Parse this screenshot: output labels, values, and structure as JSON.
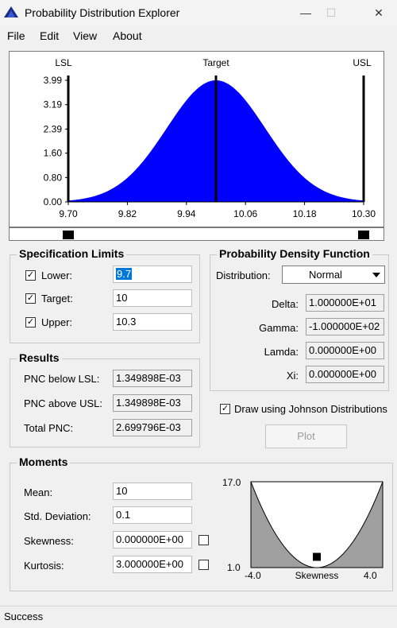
{
  "window": {
    "title": "Probability Distribution Explorer",
    "min": "—",
    "max": "☐",
    "close": "✕"
  },
  "menu": {
    "file": "File",
    "edit": "Edit",
    "view": "View",
    "about": "About"
  },
  "chart_data": {
    "type": "area",
    "description_free": true,
    "x_ticks": [
      "9.70",
      "9.82",
      "9.94",
      "10.06",
      "10.18",
      "10.30"
    ],
    "y_ticks": [
      "0.00",
      "0.80",
      "1.60",
      "2.39",
      "3.19",
      "3.99"
    ],
    "xlim": [
      9.7,
      10.3
    ],
    "ylim": [
      0,
      3.99
    ],
    "mean": 10,
    "std": 0.1,
    "markers": {
      "lsl": 9.7,
      "target": 10,
      "usl": 10.3
    },
    "marker_labels": {
      "lsl": "LSL",
      "target": "Target",
      "usl": "USL"
    },
    "fill_color": "#0000ff"
  },
  "slider": {
    "lsl_handle": 9.7,
    "usl_handle": 10.3
  },
  "spec_limits": {
    "title": "Specification Limits",
    "lower_label": "Lower:",
    "lower_value": "9.7",
    "lower_checked": "✓",
    "target_label": "Target:",
    "target_value": "10",
    "target_checked": "✓",
    "upper_label": "Upper:",
    "upper_value": "10.3",
    "upper_checked": "✓"
  },
  "results": {
    "title": "Results",
    "below_label": "PNC below LSL:",
    "below_value": "1.349898E-03",
    "above_label": "PNC above USL:",
    "above_value": "1.349898E-03",
    "total_label": "Total PNC:",
    "total_value": "2.699796E-03"
  },
  "pdf": {
    "title": "Probability Density Function",
    "distribution_label": "Distribution:",
    "distribution_value": "Normal",
    "delta_label": "Delta:",
    "delta_value": "1.000000E+01",
    "gamma_label": "Gamma:",
    "gamma_value": "-1.000000E+02",
    "lamda_label": "Lamda:",
    "lamda_value": "0.000000E+00",
    "xi_label": "Xi:",
    "xi_value": "0.000000E+00"
  },
  "johnson": {
    "label": "Draw using Johnson Distributions",
    "checked": "✓"
  },
  "plot_button": "Plot",
  "moments": {
    "title": "Moments",
    "mean_label": "Mean:",
    "mean_value": "10",
    "std_label": "Std. Deviation:",
    "std_value": "0.1",
    "skew_label": "Skewness:",
    "skew_value": "0.000000E+00",
    "kurt_label": "Kurtosis:",
    "kurt_value": "3.000000E+00"
  },
  "moment_chart": {
    "y_top": "17.0",
    "y_bottom": "1.0",
    "x_left": "-4.0",
    "x_right": "4.0",
    "x_label": "Skewness",
    "point_skewness": 0,
    "point_kurtosis": 3
  },
  "status": "Success"
}
